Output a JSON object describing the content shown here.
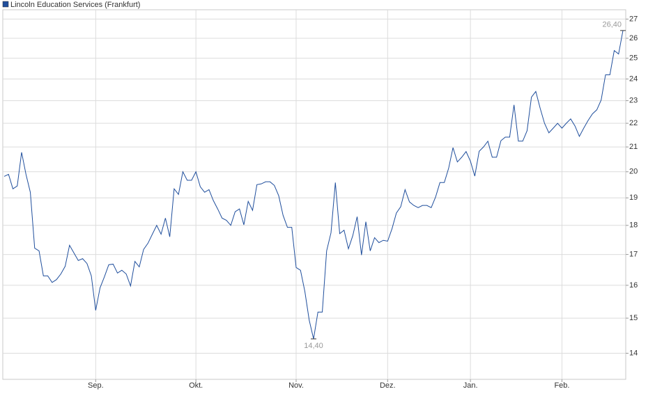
{
  "chart_data": {
    "type": "line",
    "yscale": "log",
    "grid": true,
    "legend": "top-left",
    "categories": [
      null,
      null,
      null,
      null,
      null,
      null,
      null,
      null,
      null,
      null,
      null,
      null,
      null,
      null,
      null,
      null,
      null,
      null,
      null,
      null,
      null,
      "Sep.",
      null,
      null,
      null,
      null,
      null,
      null,
      null,
      null,
      null,
      null,
      null,
      null,
      null,
      null,
      null,
      null,
      null,
      null,
      null,
      null,
      null,
      null,
      "Okt.",
      null,
      null,
      null,
      null,
      null,
      null,
      null,
      null,
      null,
      null,
      null,
      null,
      null,
      null,
      null,
      null,
      null,
      null,
      null,
      null,
      null,
      null,
      "Nov.",
      null,
      null,
      null,
      null,
      null,
      null,
      null,
      null,
      null,
      null,
      null,
      null,
      null,
      null,
      null,
      null,
      null,
      null,
      null,
      null,
      "Dez.",
      null,
      null,
      null,
      null,
      null,
      null,
      null,
      null,
      null,
      null,
      null,
      null,
      null,
      null,
      null,
      null,
      null,
      null,
      "Jan.",
      null,
      null,
      null,
      null,
      null,
      null,
      null,
      null,
      null,
      null,
      null,
      null,
      null,
      null,
      null,
      null,
      null,
      null,
      null,
      null,
      "Feb.",
      null,
      null,
      null,
      null,
      null,
      null,
      null,
      null,
      null,
      null,
      null,
      null,
      null,
      null
    ],
    "series": [
      {
        "name": "Lincoln Education Services (Frankfurt)",
        "color": "#1f4e9c",
        "values": [
          19.82,
          19.9,
          19.34,
          19.45,
          20.78,
          19.9,
          19.21,
          17.21,
          17.12,
          16.3,
          16.3,
          16.09,
          16.18,
          16.36,
          16.61,
          17.31,
          17.05,
          16.8,
          16.86,
          16.7,
          16.3,
          15.23,
          15.92,
          16.27,
          16.66,
          16.68,
          16.39,
          16.48,
          16.36,
          15.98,
          16.77,
          16.59,
          17.17,
          17.38,
          17.69,
          18,
          17.69,
          18.26,
          17.6,
          19.34,
          19.13,
          20,
          19.67,
          19.67,
          20,
          19.42,
          19.21,
          19.31,
          18.9,
          18.59,
          18.26,
          18.18,
          18,
          18.49,
          18.59,
          18.02,
          18.87,
          18.54,
          19.5,
          19.53,
          19.61,
          19.61,
          19.47,
          19.08,
          18.36,
          17.93,
          17.93,
          16.57,
          16.48,
          15.81,
          14.94,
          14.4,
          15.18,
          15.18,
          17.12,
          17.74,
          19.58,
          17.71,
          17.83,
          17.19,
          17.64,
          18.31,
          16.98,
          18.13,
          17.12,
          17.57,
          17.4,
          17.48,
          17.45,
          17.88,
          18.44,
          18.67,
          19.31,
          18.85,
          18.72,
          18.64,
          18.72,
          18.72,
          18.64,
          19.03,
          19.58,
          19.58,
          20.14,
          20.97,
          20.39,
          20.58,
          20.81,
          20.42,
          19.83,
          20.82,
          21,
          21.24,
          20.58,
          20.58,
          21.26,
          21.41,
          21.41,
          22.81,
          21.24,
          21.24,
          21.68,
          23.16,
          23.42,
          22.66,
          22,
          21.59,
          21.79,
          22,
          21.79,
          22,
          22.19,
          21.88,
          21.44,
          21.79,
          22.12,
          22.41,
          22.59,
          23.03,
          24.2,
          24.2,
          25.38,
          25.21,
          26.4
        ],
        "value_labels": [
          null,
          null,
          null,
          null,
          null,
          null,
          null,
          null,
          null,
          null,
          null,
          null,
          null,
          null,
          null,
          null,
          null,
          null,
          null,
          null,
          null,
          null,
          null,
          null,
          null,
          null,
          null,
          null,
          null,
          null,
          null,
          null,
          null,
          null,
          null,
          null,
          null,
          null,
          null,
          null,
          null,
          null,
          null,
          null,
          null,
          null,
          null,
          null,
          null,
          null,
          null,
          null,
          null,
          null,
          null,
          null,
          null,
          null,
          null,
          null,
          null,
          null,
          null,
          null,
          null,
          null,
          null,
          null,
          null,
          null,
          null,
          "14,40",
          null,
          null,
          null,
          null,
          null,
          null,
          null,
          null,
          null,
          null,
          null,
          null,
          null,
          null,
          null,
          null,
          null,
          null,
          null,
          null,
          null,
          null,
          null,
          null,
          null,
          null,
          null,
          null,
          null,
          null,
          null,
          null,
          null,
          null,
          null,
          null,
          null,
          null,
          null,
          null,
          null,
          null,
          null,
          null,
          null,
          null,
          null,
          null,
          null,
          null,
          null,
          null,
          null,
          null,
          null,
          null,
          null,
          null,
          null,
          null,
          null,
          null,
          null,
          null,
          null,
          null,
          null,
          null,
          null,
          null,
          "26,40"
        ]
      }
    ],
    "ylim": [
      13.3,
      27.5
    ],
    "yticks": [
      14,
      15,
      16,
      17,
      18,
      19,
      20,
      21,
      22,
      23,
      24,
      25,
      26,
      27
    ]
  }
}
